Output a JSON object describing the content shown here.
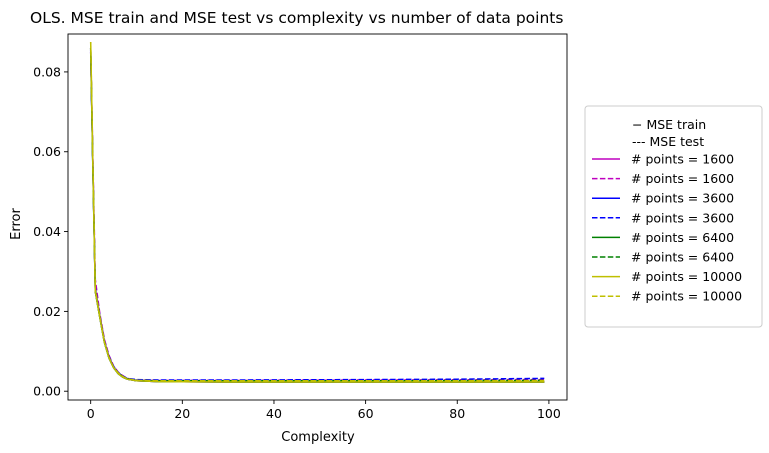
{
  "chart_data": {
    "type": "line",
    "title": "OLS. MSE train and MSE test vs complexity vs number of data points",
    "xlabel": "Complexity",
    "ylabel": "Error",
    "xlim": [
      -4.95,
      103.95
    ],
    "ylim": [
      -0.0022,
      0.0895
    ],
    "xticks": [
      0,
      20,
      40,
      60,
      80,
      100
    ],
    "yticks": [
      0.0,
      0.02,
      0.04,
      0.06,
      0.08
    ],
    "ytick_labels": [
      "0.00",
      "0.02",
      "0.04",
      "0.06",
      "0.08"
    ],
    "xtick_labels": [
      "0",
      "20",
      "40",
      "60",
      "80",
      "100"
    ],
    "grid": false,
    "legend_placement": "right, outside plot",
    "legend_header": [
      "− MSE train",
      "---  MSE test"
    ],
    "series": [
      {
        "name": "# points = 1600",
        "color": "#bf00bf",
        "style": "solid",
        "points": [
          [
            0,
            0.085
          ],
          [
            0.5,
            0.055
          ],
          [
            1,
            0.025
          ],
          [
            2,
            0.019
          ],
          [
            3,
            0.0125
          ],
          [
            4,
            0.0085
          ],
          [
            5,
            0.006
          ],
          [
            6,
            0.0045
          ],
          [
            7,
            0.0036
          ],
          [
            8,
            0.003
          ],
          [
            10,
            0.0026
          ],
          [
            15,
            0.0024
          ],
          [
            30,
            0.0023
          ],
          [
            60,
            0.0023
          ],
          [
            99,
            0.0023
          ]
        ]
      },
      {
        "name": "# points = 1600",
        "color": "#bf00bf",
        "style": "dashed",
        "points": [
          [
            0,
            0.086
          ],
          [
            0.5,
            0.057
          ],
          [
            1,
            0.028
          ],
          [
            2,
            0.0195
          ],
          [
            3,
            0.013
          ],
          [
            4,
            0.009
          ],
          [
            5,
            0.0063
          ],
          [
            6,
            0.0048
          ],
          [
            7,
            0.0039
          ],
          [
            8,
            0.0032
          ],
          [
            10,
            0.0028
          ],
          [
            15,
            0.0027
          ],
          [
            30,
            0.0027
          ],
          [
            60,
            0.0028
          ],
          [
            99,
            0.0029
          ]
        ]
      },
      {
        "name": "# points = 3600",
        "color": "#0000ff",
        "style": "solid",
        "points": [
          [
            0,
            0.085
          ],
          [
            0.5,
            0.054
          ],
          [
            1,
            0.025
          ],
          [
            2,
            0.0185
          ],
          [
            3,
            0.0122
          ],
          [
            4,
            0.0083
          ],
          [
            5,
            0.0059
          ],
          [
            6,
            0.0044
          ],
          [
            7,
            0.0035
          ],
          [
            8,
            0.003
          ],
          [
            10,
            0.0026
          ],
          [
            15,
            0.0024
          ],
          [
            30,
            0.0023
          ],
          [
            60,
            0.0023
          ],
          [
            99,
            0.0023
          ]
        ]
      },
      {
        "name": "# points = 3600",
        "color": "#0000ff",
        "style": "dashed",
        "points": [
          [
            0,
            0.0855
          ],
          [
            0.5,
            0.055
          ],
          [
            1,
            0.026
          ],
          [
            2,
            0.019
          ],
          [
            3,
            0.0126
          ],
          [
            4,
            0.0087
          ],
          [
            5,
            0.0062
          ],
          [
            6,
            0.0047
          ],
          [
            7,
            0.0038
          ],
          [
            8,
            0.0032
          ],
          [
            10,
            0.0029
          ],
          [
            15,
            0.0028
          ],
          [
            30,
            0.0028
          ],
          [
            60,
            0.0029
          ],
          [
            80,
            0.003
          ],
          [
            99,
            0.0032
          ]
        ]
      },
      {
        "name": "# points = 6400",
        "color": "#008000",
        "style": "solid",
        "points": [
          [
            0,
            0.086
          ],
          [
            0.5,
            0.054
          ],
          [
            1,
            0.025
          ],
          [
            2,
            0.0185
          ],
          [
            3,
            0.0122
          ],
          [
            4,
            0.0083
          ],
          [
            5,
            0.0059
          ],
          [
            6,
            0.0044
          ],
          [
            7,
            0.0035
          ],
          [
            8,
            0.003
          ],
          [
            10,
            0.0026
          ],
          [
            15,
            0.0024
          ],
          [
            30,
            0.0023
          ],
          [
            60,
            0.0023
          ],
          [
            99,
            0.0023
          ]
        ]
      },
      {
        "name": "# points = 6400",
        "color": "#008000",
        "style": "dashed",
        "points": [
          [
            0,
            0.086
          ],
          [
            0.5,
            0.0545
          ],
          [
            1,
            0.0255
          ],
          [
            2,
            0.0188
          ],
          [
            3,
            0.0124
          ],
          [
            4,
            0.0085
          ],
          [
            5,
            0.006
          ],
          [
            6,
            0.0046
          ],
          [
            7,
            0.0037
          ],
          [
            8,
            0.0031
          ],
          [
            10,
            0.0027
          ],
          [
            15,
            0.0026
          ],
          [
            30,
            0.0026
          ],
          [
            60,
            0.0026
          ],
          [
            99,
            0.0027
          ]
        ]
      },
      {
        "name": "# points = 10000",
        "color": "#bfbf00",
        "style": "solid",
        "points": [
          [
            0,
            0.0875
          ],
          [
            0.5,
            0.055
          ],
          [
            1,
            0.025
          ],
          [
            2,
            0.0185
          ],
          [
            3,
            0.0122
          ],
          [
            4,
            0.0083
          ],
          [
            5,
            0.0059
          ],
          [
            6,
            0.0044
          ],
          [
            7,
            0.0035
          ],
          [
            8,
            0.003
          ],
          [
            10,
            0.0026
          ],
          [
            15,
            0.0024
          ],
          [
            30,
            0.0023
          ],
          [
            60,
            0.0023
          ],
          [
            99,
            0.0023
          ]
        ]
      },
      {
        "name": "# points = 10000",
        "color": "#bfbf00",
        "style": "dashed",
        "points": [
          [
            0,
            0.0875
          ],
          [
            0.5,
            0.0555
          ],
          [
            1,
            0.0255
          ],
          [
            2,
            0.0188
          ],
          [
            3,
            0.0124
          ],
          [
            4,
            0.0085
          ],
          [
            5,
            0.006
          ],
          [
            6,
            0.0046
          ],
          [
            7,
            0.0037
          ],
          [
            8,
            0.0031
          ],
          [
            10,
            0.0027
          ],
          [
            15,
            0.0026
          ],
          [
            30,
            0.0026
          ],
          [
            60,
            0.0026
          ],
          [
            99,
            0.0026
          ]
        ]
      }
    ]
  }
}
